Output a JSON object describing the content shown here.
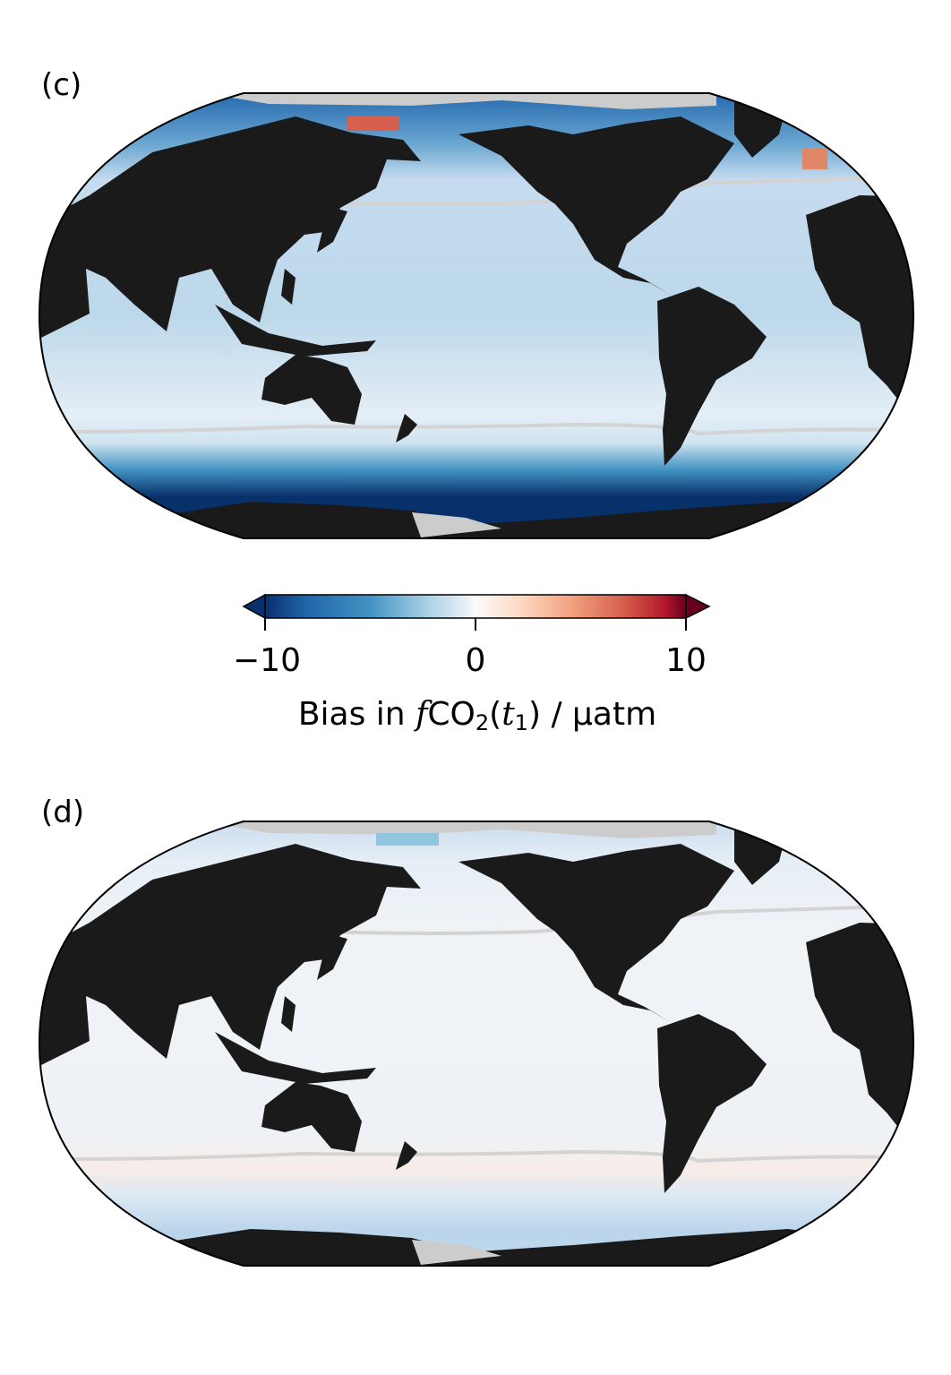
{
  "panels": [
    {
      "label": "(c)",
      "pattern": "strong_negative_bias"
    },
    {
      "label": "(d)",
      "pattern": "weak_bias"
    }
  ],
  "colorbar": {
    "colormap": "RdBu_r",
    "min": -10,
    "max": 10,
    "extend": "both",
    "ticks": [
      "−10",
      "0",
      "10"
    ],
    "title_prefix": "Bias in ",
    "title_f": "f",
    "title_co": "CO",
    "title_sub2": "2",
    "title_paren_open": "(",
    "title_t": "t",
    "title_sub1": "1",
    "title_suffix": ") / µatm"
  },
  "colors": {
    "land": "#1a1a1a",
    "ice": "#cccccc",
    "front_line": "#d3d3d3",
    "strong_blue": "#08306b",
    "light_blue": "#c6dbef",
    "near_zero": "#f0f2f5",
    "red": "#d6604d"
  }
}
